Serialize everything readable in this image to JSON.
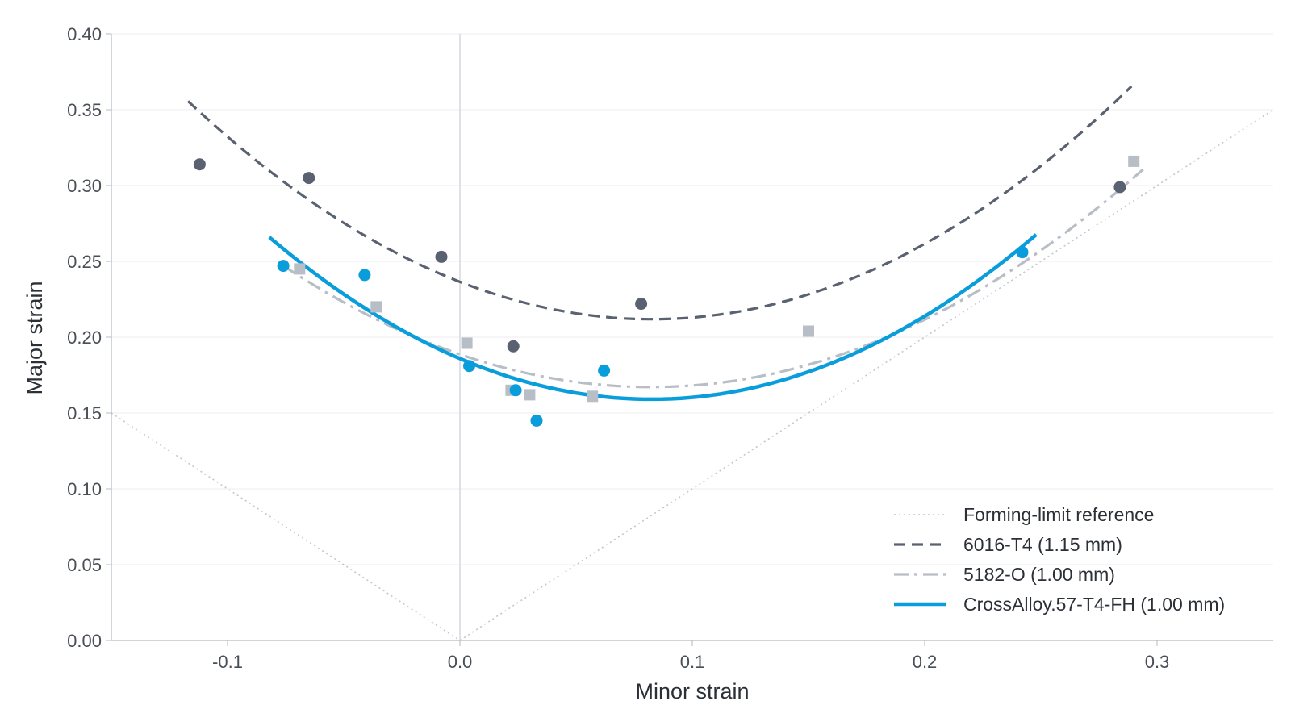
{
  "chart_data": {
    "type": "scatter",
    "xlabel": "Minor strain",
    "ylabel": "Major strain",
    "xlim": [
      -0.15,
      0.35
    ],
    "ylim": [
      0,
      0.4
    ],
    "x_ticks": [
      -0.1,
      0.0,
      0.1,
      0.2,
      0.3
    ],
    "x_tick_labels": [
      "-0.1",
      "0.0",
      "0.1",
      "0.2",
      "0.3"
    ],
    "y_ticks": [
      0,
      0.05,
      0.1,
      0.15,
      0.2,
      0.25,
      0.3,
      0.35,
      0.4
    ],
    "y_tick_labels": [
      "0.00",
      "0.05",
      "0.10",
      "0.15",
      "0.20",
      "0.25",
      "0.30",
      "0.35",
      "0.40"
    ],
    "grid": "horizontal",
    "zero_line_x": 0,
    "legend_position": "bottom-right",
    "reference": {
      "name": "Forming-limit reference",
      "color": "#c4c7cc",
      "style": "dotted",
      "points": [
        [
          -0.15,
          0.15
        ],
        [
          0,
          0
        ],
        [
          0.35,
          0.35
        ]
      ]
    },
    "series": [
      {
        "name": "6016-T4 (1.15 mm)",
        "color": "#5a6170",
        "line_style": "dashed",
        "marker": "circle",
        "fit": {
          "x_range": [
            -0.117,
            0.289
          ],
          "coefficients": [
            0.2365,
            -0.5963,
            3.6072
          ]
        },
        "points": [
          {
            "x": -0.112,
            "y": 0.314
          },
          {
            "x": -0.065,
            "y": 0.305
          },
          {
            "x": -0.008,
            "y": 0.253
          },
          {
            "x": 0.023,
            "y": 0.194
          },
          {
            "x": 0.078,
            "y": 0.222
          },
          {
            "x": 0.284,
            "y": 0.299
          }
        ]
      },
      {
        "name": "5182-O (1.00 mm)",
        "color": "#b8bec6",
        "line_style": "dashdot",
        "marker": "square",
        "fit": {
          "x_range": [
            -0.076,
            0.294
          ],
          "coefficients": [
            0.1887,
            -0.5253,
            3.1972
          ]
        },
        "points": [
          {
            "x": -0.069,
            "y": 0.245
          },
          {
            "x": -0.036,
            "y": 0.22
          },
          {
            "x": 0.003,
            "y": 0.196
          },
          {
            "x": 0.022,
            "y": 0.165
          },
          {
            "x": 0.03,
            "y": 0.162
          },
          {
            "x": 0.057,
            "y": 0.161
          },
          {
            "x": 0.15,
            "y": 0.204
          },
          {
            "x": 0.29,
            "y": 0.316
          }
        ]
      },
      {
        "name": "CrossAlloy.57-T4-FH (1.00 mm)",
        "color": "#0a9ddb",
        "line_style": "solid",
        "marker": "circle",
        "fit": {
          "x_range": [
            -0.082,
            0.248
          ],
          "coefficients": [
            0.1859,
            -0.6515,
            3.9556
          ]
        },
        "points": [
          {
            "x": -0.076,
            "y": 0.247
          },
          {
            "x": -0.041,
            "y": 0.241
          },
          {
            "x": 0.004,
            "y": 0.181
          },
          {
            "x": 0.024,
            "y": 0.165
          },
          {
            "x": 0.033,
            "y": 0.145
          },
          {
            "x": 0.062,
            "y": 0.178
          },
          {
            "x": 0.242,
            "y": 0.256
          }
        ]
      }
    ]
  }
}
